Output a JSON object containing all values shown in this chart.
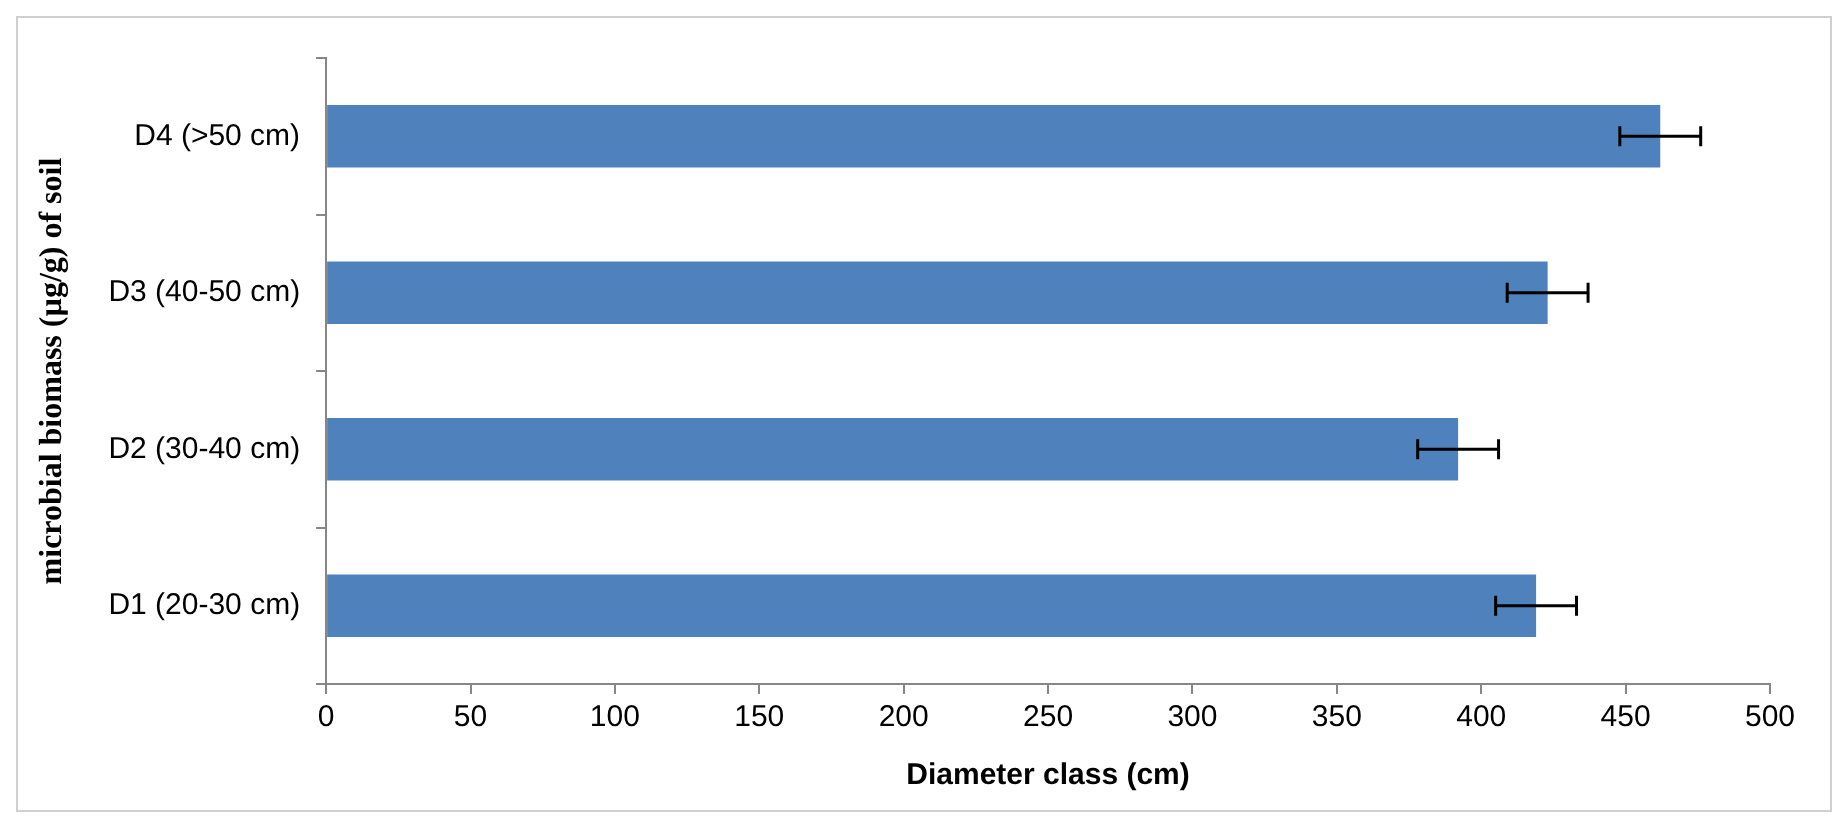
{
  "chart_data": {
    "type": "bar",
    "orientation": "horizontal",
    "categories": [
      "D4 (>50 cm)",
      "D3 (40-50 cm)",
      "D2 (30-40 cm)",
      "D1 (20-30 cm)"
    ],
    "values": [
      462,
      423,
      392,
      419
    ],
    "errors": [
      14,
      14,
      14,
      14
    ],
    "color": "#4f81bd",
    "xlabel": "Diameter class (cm)",
    "ylabel": "microbial biomass (µg/g) of soil",
    "xlim": [
      0,
      500
    ],
    "xticks": [
      0,
      50,
      100,
      150,
      200,
      250,
      300,
      350,
      400,
      450,
      500
    ],
    "grid": false,
    "legend": false
  }
}
